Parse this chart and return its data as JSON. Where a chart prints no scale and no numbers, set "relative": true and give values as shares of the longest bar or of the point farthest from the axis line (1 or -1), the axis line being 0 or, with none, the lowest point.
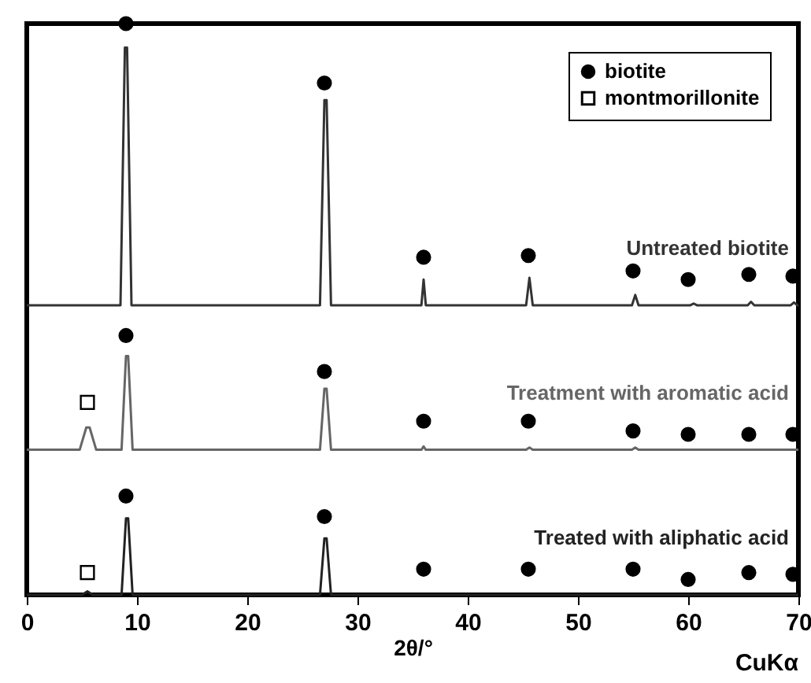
{
  "chart_data": {
    "type": "line",
    "relative": true,
    "xlabel": "2θ/°",
    "xlim": [
      0,
      70
    ],
    "xticks": [
      0,
      10,
      20,
      30,
      40,
      50,
      60,
      70
    ],
    "tick_labels": "x",
    "legend": "top right",
    "annotations": [
      "CuKα"
    ],
    "series": [
      {
        "name": "Untreated biotite",
        "color": "#333333",
        "x": [
          0,
          8.5,
          8.9,
          9.1,
          9.5,
          26.6,
          27,
          27.2,
          27.6,
          35.8,
          36,
          36.2,
          45.3,
          45.6,
          45.9,
          54.9,
          55.2,
          55.5,
          60.2,
          60.5,
          60.8,
          65.4,
          65.7,
          66,
          69.3,
          69.6,
          69.9,
          70
        ],
        "values": [
          0.507,
          0.507,
          0.958,
          0.958,
          0.507,
          0.507,
          0.866,
          0.866,
          0.507,
          0.507,
          0.552,
          0.507,
          0.507,
          0.555,
          0.507,
          0.507,
          0.525,
          0.507,
          0.507,
          0.51,
          0.507,
          0.507,
          0.513,
          0.507,
          0.507,
          0.512,
          0.507,
          0.507
        ]
      },
      {
        "name": "Treatment with aromatic acid",
        "color": "#666666",
        "x": [
          0,
          4.8,
          5.4,
          5.7,
          6.3,
          8.6,
          9,
          9.2,
          9.6,
          26.6,
          27,
          27.2,
          27.6,
          35.8,
          36,
          36.2,
          45.3,
          45.6,
          45.9,
          54.9,
          55.2,
          55.5,
          70
        ],
        "values": [
          0.254,
          0.254,
          0.293,
          0.293,
          0.254,
          0.254,
          0.418,
          0.418,
          0.254,
          0.254,
          0.361,
          0.361,
          0.254,
          0.254,
          0.26,
          0.254,
          0.254,
          0.258,
          0.254,
          0.254,
          0.258,
          0.254,
          0.254
        ]
      },
      {
        "name": "Treated with aliphatic acid",
        "color": "#222222",
        "x": [
          0,
          5,
          5.5,
          6,
          8.6,
          9,
          9.2,
          9.6,
          26.6,
          27,
          27.2,
          27.6,
          70
        ],
        "values": [
          0,
          0,
          0.006,
          0,
          0,
          0.134,
          0.134,
          0,
          0,
          0.099,
          0.099,
          0,
          0
        ]
      },
      {
        "name": "biotite",
        "type": "scatter",
        "marker": "circle",
        "color": "#000000",
        "x": [
          9,
          27,
          36,
          45.5,
          55,
          60,
          65.5,
          69.5,
          9,
          27,
          36,
          45.5,
          55,
          60,
          65.5,
          69.5,
          9,
          27,
          36,
          45.5,
          55,
          60,
          65.5,
          69.5
        ],
        "values": [
          1.0,
          0.896,
          0.591,
          0.594,
          0.567,
          0.552,
          0.561,
          0.558,
          0.454,
          0.391,
          0.304,
          0.304,
          0.287,
          0.281,
          0.281,
          0.281,
          0.173,
          0.137,
          0.045,
          0.045,
          0.045,
          0.027,
          0.039,
          0.036
        ]
      },
      {
        "name": "montmorillonite",
        "type": "scatter",
        "marker": "square",
        "color": "#000000",
        "x": [
          5.5,
          5.5
        ],
        "values": [
          0.337,
          0.039
        ]
      }
    ]
  }
}
